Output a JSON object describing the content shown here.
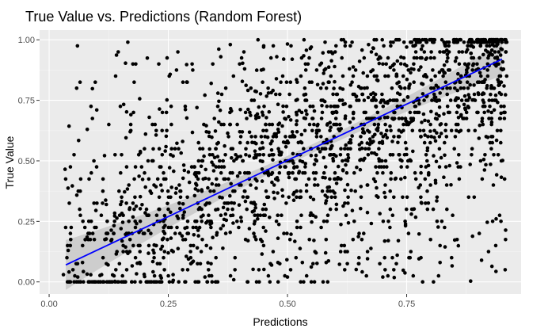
{
  "chart_data": {
    "type": "scatter",
    "title": "True Value vs. Predictions (Random Forest)",
    "xlabel": "Predictions",
    "ylabel": "True Value",
    "xlim": [
      -0.02,
      0.99
    ],
    "ylim": [
      -0.05,
      1.04
    ],
    "x_ticks": [
      {
        "value": 0.0,
        "label": "0.00"
      },
      {
        "value": 0.25,
        "label": "0.25"
      },
      {
        "value": 0.5,
        "label": "0.50"
      },
      {
        "value": 0.75,
        "label": "0.75"
      }
    ],
    "y_ticks": [
      {
        "value": 0.0,
        "label": "0.00"
      },
      {
        "value": 0.25,
        "label": "0.25"
      },
      {
        "value": 0.5,
        "label": "0.50"
      },
      {
        "value": 0.75,
        "label": "0.75"
      },
      {
        "value": 1.0,
        "label": "1.00"
      }
    ],
    "grid": true,
    "background": "#ebebeb",
    "point_color": "#000000",
    "fit_line": {
      "method": "linear",
      "color": "#0000ff",
      "ribbon_color": "#c8c8c8",
      "x": [
        0.035,
        0.95
      ],
      "y": [
        0.07,
        0.92
      ]
    },
    "points": [
      [
        0.03,
        0.03
      ],
      [
        0.04,
        0.13
      ],
      [
        0.05,
        0.05
      ],
      [
        0.06,
        0.02
      ],
      [
        0.07,
        0.08
      ],
      [
        0.08,
        0.63
      ],
      [
        0.09,
        0.0
      ],
      [
        0.1,
        0.71
      ],
      [
        0.11,
        0.03
      ],
      [
        0.12,
        0.32
      ],
      [
        0.13,
        0.17
      ],
      [
        0.14,
        0.05
      ],
      [
        0.15,
        0.45
      ],
      [
        0.16,
        0.0
      ],
      [
        0.17,
        0.62
      ],
      [
        0.18,
        0.35
      ],
      [
        0.19,
        0.08
      ],
      [
        0.2,
        0.55
      ],
      [
        0.2,
        0.2
      ],
      [
        0.21,
        0.68
      ],
      [
        0.22,
        0.12
      ],
      [
        0.23,
        0.9
      ],
      [
        0.24,
        0.45
      ],
      [
        0.25,
        0.3
      ],
      [
        0.26,
        0.03
      ],
      [
        0.27,
        0.95
      ],
      [
        0.28,
        0.58
      ],
      [
        0.29,
        0.2
      ],
      [
        0.3,
        0.9
      ],
      [
        0.3,
        0.08
      ],
      [
        0.31,
        0.72
      ],
      [
        0.32,
        0.38
      ],
      [
        0.33,
        0.15
      ],
      [
        0.34,
        0.82
      ],
      [
        0.35,
        0.55
      ],
      [
        0.35,
        0.0
      ],
      [
        0.36,
        0.93
      ],
      [
        0.37,
        0.28
      ],
      [
        0.38,
        0.65
      ],
      [
        0.39,
        0.1
      ],
      [
        0.4,
        0.45
      ],
      [
        0.41,
        0.88
      ],
      [
        0.42,
        0.22
      ],
      [
        0.43,
        0.75
      ],
      [
        0.44,
        0.05
      ],
      [
        0.45,
        0.97
      ],
      [
        0.46,
        0.35
      ],
      [
        0.47,
        0.6
      ],
      [
        0.48,
        0.18
      ],
      [
        0.49,
        0.85
      ],
      [
        0.5,
        0.5
      ],
      [
        0.5,
        0.02
      ],
      [
        0.51,
        0.92
      ],
      [
        0.52,
        0.25
      ],
      [
        0.53,
        0.7
      ],
      [
        0.54,
        0.4
      ],
      [
        0.55,
        0.97
      ],
      [
        0.56,
        0.12
      ],
      [
        0.57,
        0.8
      ],
      [
        0.58,
        0.55
      ],
      [
        0.59,
        0.3
      ],
      [
        0.6,
        0.95
      ],
      [
        0.61,
        0.65
      ],
      [
        0.62,
        0.05
      ],
      [
        0.63,
        0.88
      ],
      [
        0.64,
        0.45
      ],
      [
        0.65,
        0.75
      ],
      [
        0.66,
        0.2
      ],
      [
        0.67,
        0.98
      ],
      [
        0.68,
        0.58
      ],
      [
        0.69,
        0.35
      ],
      [
        0.7,
        0.9
      ],
      [
        0.71,
        0.68
      ],
      [
        0.72,
        0.1
      ],
      [
        0.73,
        0.82
      ],
      [
        0.74,
        0.5
      ],
      [
        0.75,
        0.97
      ],
      [
        0.76,
        0.28
      ],
      [
        0.77,
        0.75
      ],
      [
        0.78,
        0.6
      ],
      [
        0.79,
        0.92
      ],
      [
        0.8,
        0.4
      ],
      [
        0.81,
        0.85
      ],
      [
        0.82,
        0.15
      ],
      [
        0.83,
        0.98
      ],
      [
        0.84,
        0.7
      ],
      [
        0.85,
        0.55
      ],
      [
        0.86,
        0.95
      ],
      [
        0.87,
        0.8
      ],
      [
        0.88,
        0.35
      ],
      [
        0.89,
        0.97
      ],
      [
        0.9,
        0.88
      ],
      [
        0.91,
        0.65
      ],
      [
        0.92,
        0.95
      ],
      [
        0.93,
        0.98
      ],
      [
        0.94,
        0.9
      ],
      [
        0.95,
        0.96
      ],
      [
        0.12,
        0.2
      ],
      [
        0.15,
        0.32
      ],
      [
        0.18,
        0.0
      ],
      [
        0.22,
        0.4
      ],
      [
        0.24,
        0.18
      ],
      [
        0.26,
        0.52
      ],
      [
        0.28,
        0.05
      ],
      [
        0.31,
        0.45
      ],
      [
        0.33,
        0.62
      ],
      [
        0.36,
        0.22
      ],
      [
        0.38,
        0.98
      ],
      [
        0.4,
        0.62
      ],
      [
        0.42,
        0.52
      ],
      [
        0.44,
        0.68
      ],
      [
        0.46,
        0.78
      ],
      [
        0.48,
        0.42
      ],
      [
        0.52,
        0.62
      ],
      [
        0.54,
        0.75
      ],
      [
        0.56,
        0.45
      ],
      [
        0.58,
        0.88
      ],
      [
        0.6,
        0.35
      ],
      [
        0.62,
        0.55
      ],
      [
        0.64,
        0.25
      ],
      [
        0.66,
        0.62
      ],
      [
        0.68,
        0.78
      ],
      [
        0.7,
        0.45
      ],
      [
        0.72,
        0.58
      ],
      [
        0.74,
        0.72
      ],
      [
        0.76,
        0.88
      ],
      [
        0.78,
        0.45
      ],
      [
        0.8,
        0.65
      ],
      [
        0.82,
        0.78
      ],
      [
        0.84,
        0.48
      ],
      [
        0.86,
        0.62
      ],
      [
        0.88,
        0.72
      ],
      [
        0.9,
        0.78
      ],
      [
        0.92,
        0.85
      ],
      [
        0.7,
        0.02
      ],
      [
        0.55,
        0.0
      ],
      [
        0.45,
        0.15
      ],
      [
        0.35,
        0.1
      ],
      [
        0.25,
        0.12
      ],
      [
        0.65,
        0.1
      ],
      [
        0.78,
        0.1
      ],
      [
        0.82,
        0.08
      ],
      [
        0.58,
        0.12
      ],
      [
        0.48,
        0.08
      ]
    ],
    "scatter_synthetic": {
      "count": 1900,
      "seed": 20240521,
      "uniform_prob": 0.25,
      "slope": 0.93,
      "intercept": 0.035,
      "noise_sd": 0.21,
      "x_range": [
        0.03,
        0.96
      ]
    }
  }
}
